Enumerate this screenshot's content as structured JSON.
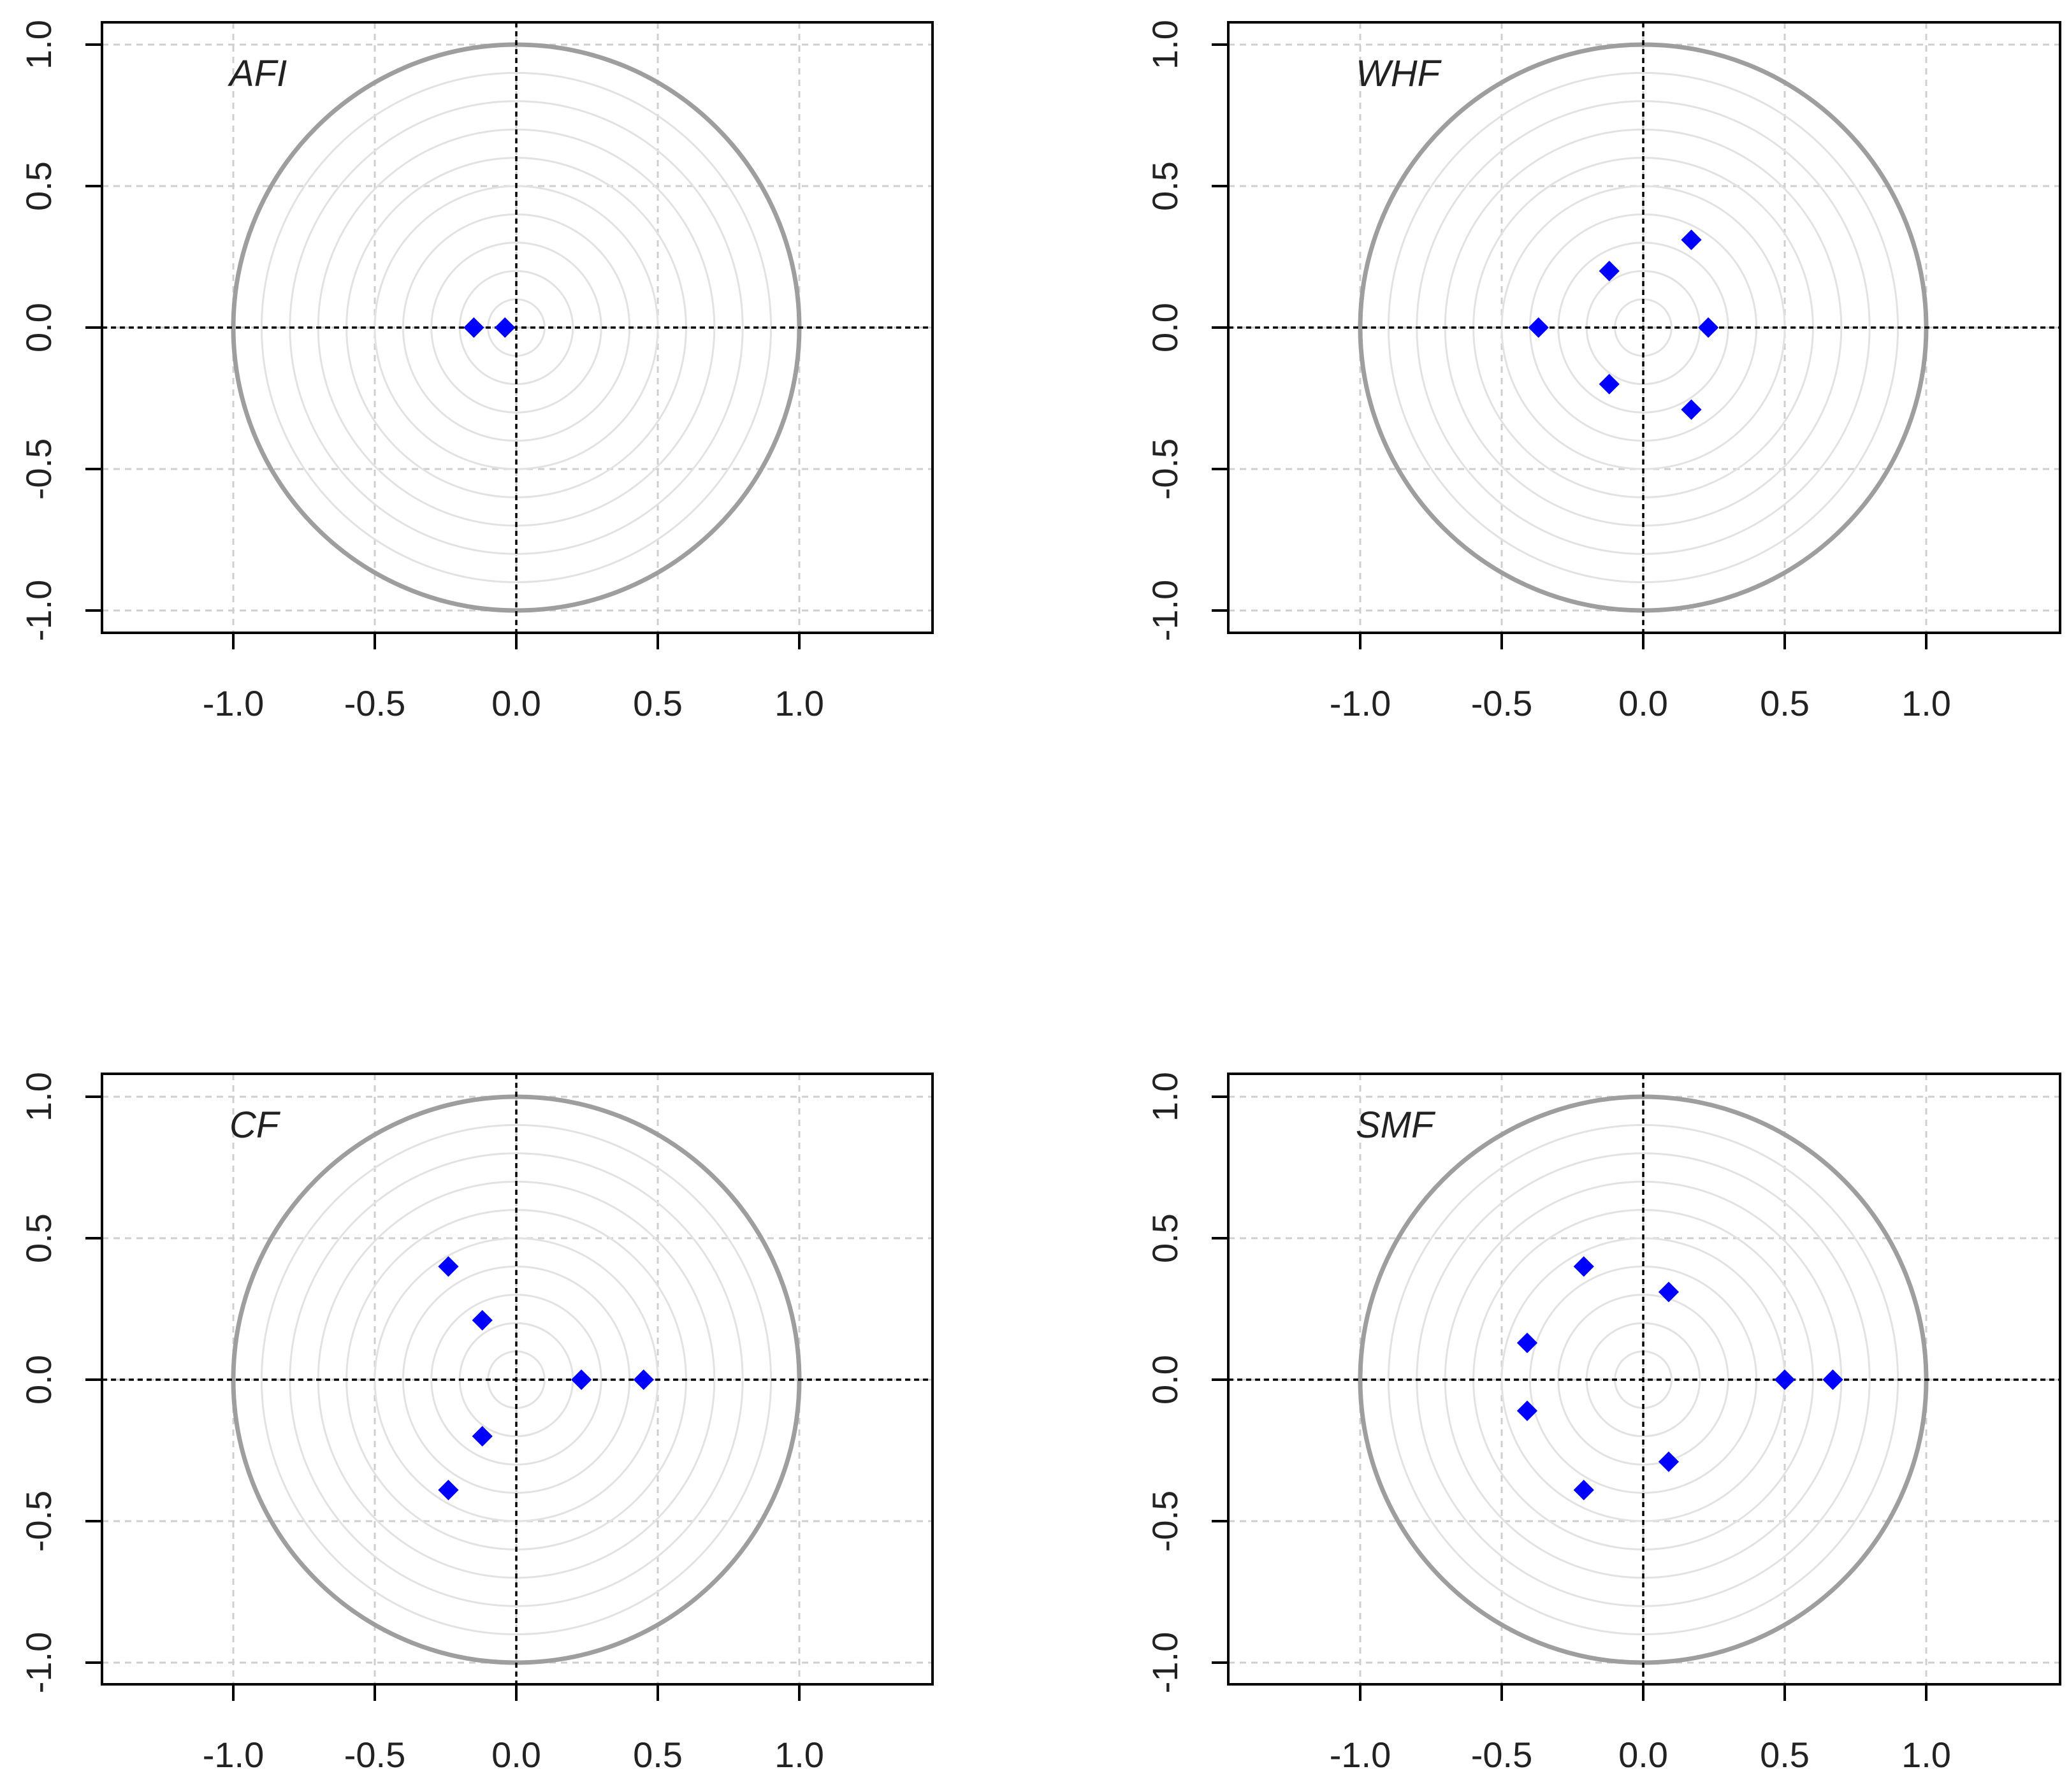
{
  "chart_data": [
    {
      "type": "scatter",
      "label": "AFI",
      "xlim": [
        -1.0,
        1.0
      ],
      "ylim": [
        -1.0,
        1.0
      ],
      "x_ticks": [
        "-1.0",
        "-0.5",
        "0.0",
        "0.5",
        "1.0"
      ],
      "y_ticks": [
        "-1.0",
        "-0.5",
        "0.0",
        "0.5",
        "1.0"
      ],
      "grid": true,
      "unit_circle": true,
      "points": [
        {
          "x": -0.15,
          "y": 0.0
        },
        {
          "x": -0.04,
          "y": 0.0
        }
      ]
    },
    {
      "type": "scatter",
      "label": "WHF",
      "xlim": [
        -1.0,
        1.0
      ],
      "ylim": [
        -1.0,
        1.0
      ],
      "x_ticks": [
        "-1.0",
        "-0.5",
        "0.0",
        "0.5",
        "1.0"
      ],
      "y_ticks": [
        "-1.0",
        "-0.5",
        "0.0",
        "0.5",
        "1.0"
      ],
      "grid": true,
      "unit_circle": true,
      "points": [
        {
          "x": -0.37,
          "y": 0.0
        },
        {
          "x": 0.23,
          "y": 0.0
        },
        {
          "x": -0.12,
          "y": 0.2
        },
        {
          "x": -0.12,
          "y": -0.2
        },
        {
          "x": 0.17,
          "y": 0.31
        },
        {
          "x": 0.17,
          "y": -0.29
        }
      ]
    },
    {
      "type": "scatter",
      "label": "CF",
      "xlim": [
        -1.0,
        1.0
      ],
      "ylim": [
        -1.0,
        1.0
      ],
      "x_ticks": [
        "-1.0",
        "-0.5",
        "0.0",
        "0.5",
        "1.0"
      ],
      "y_ticks": [
        "-1.0",
        "-0.5",
        "0.0",
        "0.5",
        "1.0"
      ],
      "grid": true,
      "unit_circle": true,
      "points": [
        {
          "x": 0.23,
          "y": 0.0
        },
        {
          "x": 0.45,
          "y": 0.0
        },
        {
          "x": -0.24,
          "y": 0.4
        },
        {
          "x": -0.24,
          "y": -0.39
        },
        {
          "x": -0.12,
          "y": 0.21
        },
        {
          "x": -0.12,
          "y": -0.2
        }
      ]
    },
    {
      "type": "scatter",
      "label": "SMF",
      "xlim": [
        -1.0,
        1.0
      ],
      "ylim": [
        -1.0,
        1.0
      ],
      "x_ticks": [
        "-1.0",
        "-0.5",
        "0.0",
        "0.5",
        "1.0"
      ],
      "y_ticks": [
        "-1.0",
        "-0.5",
        "0.0",
        "0.5",
        "1.0"
      ],
      "grid": true,
      "unit_circle": true,
      "points": [
        {
          "x": 0.5,
          "y": 0.0
        },
        {
          "x": 0.67,
          "y": 0.0
        },
        {
          "x": -0.21,
          "y": 0.4
        },
        {
          "x": -0.21,
          "y": -0.39
        },
        {
          "x": 0.09,
          "y": 0.31
        },
        {
          "x": 0.09,
          "y": -0.29
        },
        {
          "x": -0.41,
          "y": 0.13
        },
        {
          "x": -0.41,
          "y": -0.11
        }
      ]
    }
  ],
  "colors": {
    "point": "#0000ff",
    "unit_circle": "#9e9e9e",
    "inner_circles": "#e2e2e2",
    "grid": "#cfcfcf",
    "axis_lines": "#000000",
    "frame": "#000000"
  }
}
